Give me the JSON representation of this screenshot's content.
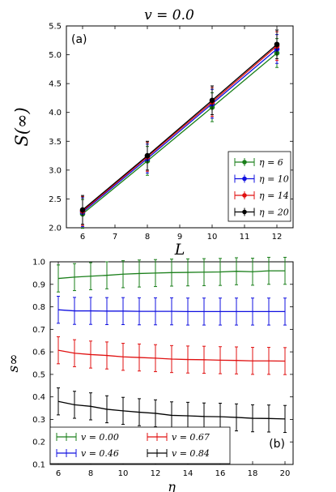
{
  "figure_title": "v = 0.0",
  "chart_data": [
    {
      "type": "line",
      "panel_label": "(a)",
      "xlabel": "L",
      "ylabel": "S(∞)",
      "xlim": [
        5.5,
        12.5
      ],
      "ylim": [
        2.0,
        5.5
      ],
      "x_ticks": [
        6,
        7,
        8,
        9,
        10,
        11,
        12
      ],
      "y_ticks": [
        2.0,
        2.5,
        3.0,
        3.5,
        4.0,
        4.5,
        5.0,
        5.5
      ],
      "x": [
        6,
        8,
        10,
        12
      ],
      "legend_position": "lower-right",
      "series": [
        {
          "name": "η = 6",
          "color": "#1a7f1a",
          "values": [
            2.24,
            3.16,
            4.09,
            5.03
          ]
        },
        {
          "name": "η = 10",
          "color": "#1010e0",
          "values": [
            2.27,
            3.2,
            4.15,
            5.1
          ]
        },
        {
          "name": "η = 14",
          "color": "#e01010",
          "values": [
            2.29,
            3.23,
            4.18,
            5.15
          ]
        },
        {
          "name": "η = 20",
          "color": "#000000",
          "values": [
            2.31,
            3.25,
            4.21,
            5.18
          ]
        }
      ]
    },
    {
      "type": "line",
      "panel_label": "(b)",
      "xlabel": "η",
      "ylabel": "s∞",
      "xlim": [
        5.5,
        20.5
      ],
      "ylim": [
        0.1,
        1.0
      ],
      "x_ticks": [
        6,
        8,
        10,
        12,
        14,
        16,
        18,
        20
      ],
      "y_ticks": [
        0.1,
        0.2,
        0.3,
        0.4,
        0.5,
        0.6,
        0.7,
        0.8,
        0.9,
        1.0
      ],
      "x": [
        6,
        7,
        8,
        9,
        10,
        11,
        12,
        13,
        14,
        15,
        16,
        17,
        18,
        19,
        20
      ],
      "legend_position": "lower-left",
      "series": [
        {
          "name": "v = 0.00",
          "color": "#1a7f1a",
          "values": [
            0.926,
            0.932,
            0.936,
            0.94,
            0.945,
            0.948,
            0.95,
            0.952,
            0.953,
            0.954,
            0.955,
            0.958,
            0.956,
            0.96,
            0.96
          ]
        },
        {
          "name": "v = 0.46",
          "color": "#1010e0",
          "values": [
            0.787,
            0.782,
            0.782,
            0.781,
            0.781,
            0.78,
            0.78,
            0.78,
            0.779,
            0.779,
            0.779,
            0.779,
            0.779,
            0.779,
            0.779
          ]
        },
        {
          "name": "v = 0.67",
          "color": "#e01010",
          "values": [
            0.607,
            0.594,
            0.588,
            0.584,
            0.578,
            0.575,
            0.572,
            0.568,
            0.566,
            0.565,
            0.563,
            0.562,
            0.56,
            0.56,
            0.559
          ]
        },
        {
          "name": "v = 0.84",
          "color": "#000000",
          "values": [
            0.38,
            0.365,
            0.358,
            0.345,
            0.338,
            0.332,
            0.327,
            0.318,
            0.316,
            0.313,
            0.312,
            0.309,
            0.305,
            0.304,
            0.302
          ]
        }
      ]
    }
  ]
}
